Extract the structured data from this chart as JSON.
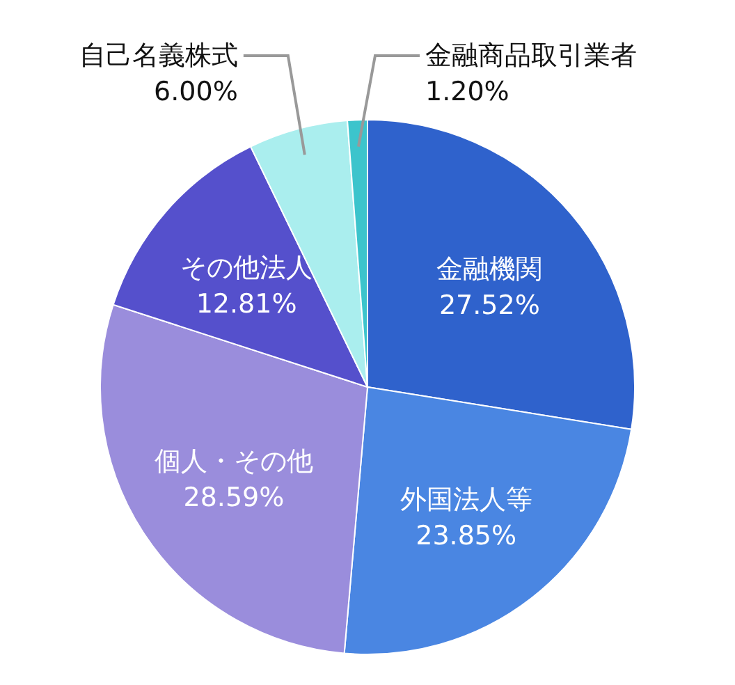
{
  "chart_data": {
    "type": "pie",
    "categories": [
      "金融機関",
      "外国法人等",
      "個人・その他",
      "その他法人",
      "自己名義株式",
      "金融商品取引業者"
    ],
    "values": [
      27.52,
      23.85,
      28.59,
      12.81,
      6.0,
      1.2
    ],
    "value_labels": [
      "27.52%",
      "23.85%",
      "28.59%",
      "12.81%",
      "6.00%",
      "1.20%"
    ],
    "colors": [
      "#2f62cc",
      "#4a86e2",
      "#9a8ddc",
      "#5550cc",
      "#aaeeee",
      "#3cc4cc"
    ]
  }
}
